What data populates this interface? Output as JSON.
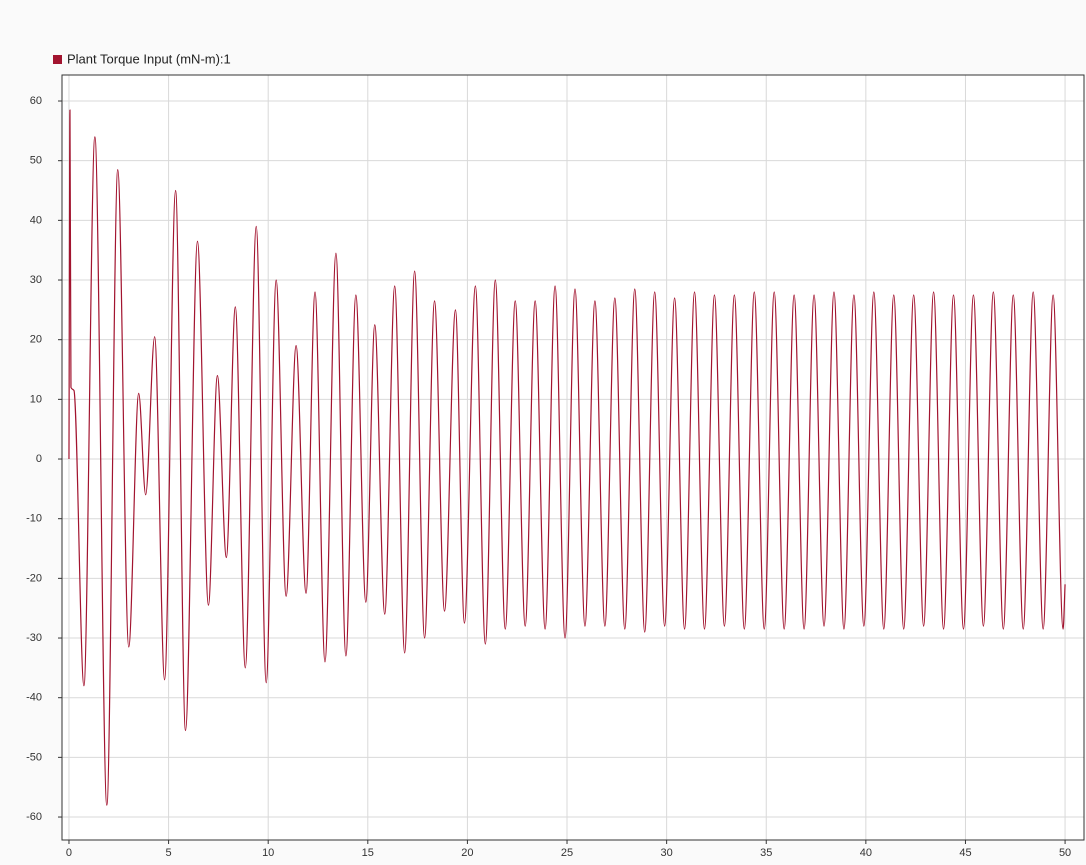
{
  "chart_data": {
    "type": "line",
    "x": [
      0,
      0.05,
      0.1,
      0.25,
      0.75,
      1.3,
      1.9,
      2.45,
      3.0,
      3.5,
      3.85,
      4.3,
      4.8,
      5.35,
      5.85,
      6.45,
      7.0,
      7.45,
      7.9,
      8.35,
      8.85,
      9.4,
      9.9,
      10.4,
      10.9,
      11.4,
      11.9,
      12.35,
      12.85,
      13.4,
      13.9,
      14.4,
      14.9,
      15.35,
      15.85,
      16.35,
      16.85,
      17.35,
      17.85,
      18.35,
      18.85,
      19.4,
      19.85,
      20.4,
      20.9,
      21.4,
      21.9,
      22.4,
      22.9,
      23.4,
      23.9,
      24.4,
      24.9,
      25.4,
      25.9,
      26.4,
      26.9,
      27.4,
      27.9,
      28.4,
      28.9,
      29.4,
      29.9,
      30.4,
      30.9,
      31.4,
      31.9,
      32.4,
      32.9,
      33.4,
      33.9,
      34.4,
      34.9,
      35.4,
      35.9,
      36.4,
      36.9,
      37.4,
      37.9,
      38.4,
      38.9,
      39.4,
      39.9,
      40.4,
      40.9,
      41.4,
      41.9,
      42.4,
      42.9,
      43.4,
      43.9,
      44.4,
      44.9,
      45.4,
      45.9,
      46.4,
      46.9,
      47.4,
      47.9,
      48.4,
      48.9,
      49.4,
      49.9,
      50
    ],
    "series": [
      {
        "name": "Plant Torque Input (mN-m):1",
        "color": "#a2142f",
        "values": [
          0,
          58.5,
          12,
          11.5,
          -38,
          54,
          -58,
          48.5,
          -31.5,
          11,
          -6,
          20.5,
          -37,
          45,
          -45.5,
          36.5,
          -24.5,
          14,
          -16.5,
          25.5,
          -35,
          39,
          -37.5,
          30,
          -23,
          19,
          -22.5,
          28,
          -34,
          34.5,
          -33,
          27.5,
          -24,
          22.5,
          -26,
          29,
          -32.5,
          31.5,
          -30,
          26.5,
          -25.5,
          25,
          -27.5,
          29,
          -31,
          30,
          -28.5,
          26.5,
          -28,
          26.5,
          -28.5,
          29,
          -30,
          28.5,
          -28,
          26.5,
          -28,
          27,
          -28.5,
          28.5,
          -29,
          28,
          -28,
          27,
          -28.5,
          28,
          -28.5,
          27.5,
          -28,
          27.5,
          -28.5,
          28,
          -28.5,
          28,
          -28.5,
          27.5,
          -28.5,
          27.5,
          -28,
          28,
          -28.5,
          27.5,
          -28,
          28,
          -28.5,
          27.5,
          -28.5,
          27.5,
          -28,
          28,
          -28.5,
          27.5,
          -28.5,
          27.5,
          -28,
          28,
          -28.5,
          27.5,
          -28.5,
          28,
          -28.5,
          27.5,
          -28.5,
          -21
        ]
      }
    ],
    "xlim": [
      -0.35,
      50.95
    ],
    "ylim": [
      -63.85,
      64.36
    ],
    "xticks": [
      0,
      5,
      10,
      15,
      20,
      25,
      30,
      35,
      40,
      45,
      50
    ],
    "yticks": [
      -60,
      -50,
      -40,
      -30,
      -20,
      -10,
      0,
      10,
      20,
      30,
      40,
      50,
      60
    ],
    "grid": true
  }
}
